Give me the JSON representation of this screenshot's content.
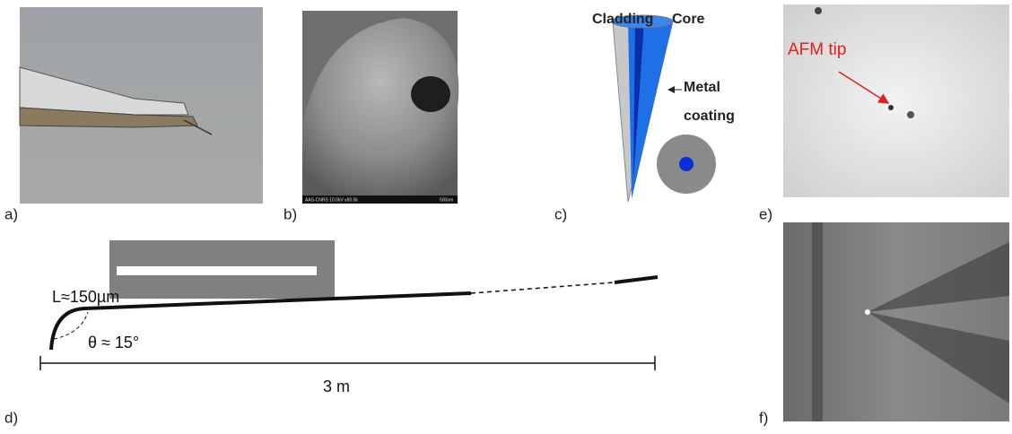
{
  "panels": [
    {
      "label": "a)"
    },
    {
      "label": "b)",
      "footer_text": "AAS-CNRS 10.0kV x80.0k",
      "scale_text": "500nm"
    },
    {
      "label": "c)",
      "cladding": "Cladding",
      "core": "Core",
      "metal_line1": "Metal",
      "metal_line2": "coating"
    },
    {
      "label": "e)",
      "annotation": "AFM tip"
    },
    {
      "label": "d)",
      "length": "L≈150µm",
      "angle": "θ ≈ 15°",
      "distance": "3 m"
    },
    {
      "label": "f)"
    }
  ]
}
